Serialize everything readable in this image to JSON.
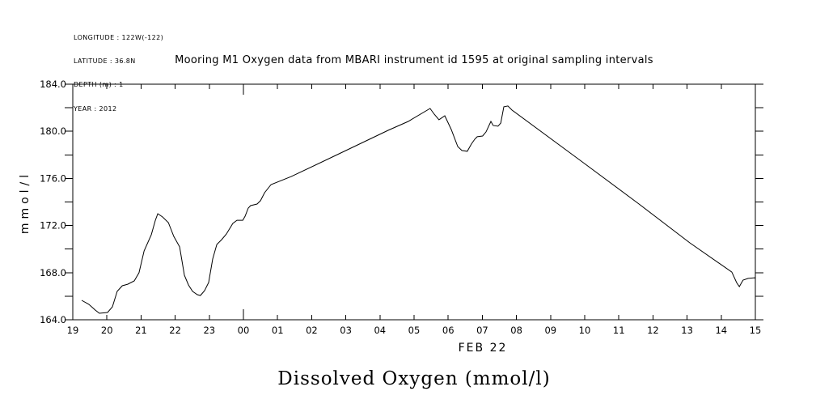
{
  "header": {
    "metadata_lines": [
      "LONGITUDE : 122W(-122)",
      "LATITUDE : 36.8N",
      "DEPTH (m) : 1",
      "YEAR : 2012"
    ]
  },
  "chart_data": {
    "type": "line",
    "title": "Mooring M1 Oxygen data from MBARI instrument id 1595 at original sampling intervals",
    "ylabel": "mmol/l",
    "xlabel": "FEB 22",
    "caption": "Dissolved Oxygen (mmol/l)",
    "grid": false,
    "legend": "none",
    "line_color": "#000000",
    "background_color": "#ffffff",
    "ylim": [
      164.0,
      184.0
    ],
    "y_major_ticks": [
      164.0,
      168.0,
      172.0,
      176.0,
      180.0,
      184.0
    ],
    "y_major_tick_labels": [
      "164.0",
      "168.0",
      "172.0",
      "176.0",
      "180.0",
      "184.0"
    ],
    "y_minor_ticks": [
      166.0,
      170.0,
      174.0,
      178.0,
      182.0
    ],
    "x_range_hours": [
      0,
      20
    ],
    "x_tick_labels": [
      "19",
      "20",
      "21",
      "22",
      "23",
      "00",
      "01",
      "02",
      "03",
      "04",
      "05",
      "06",
      "07",
      "08",
      "09",
      "10",
      "11",
      "12",
      "13",
      "14",
      "15"
    ],
    "x_midnight_label": "00",
    "series": [
      {
        "name": "dissolved_oxygen_mmol_per_l",
        "x_unit": "hours_since_feb21_1900",
        "points": [
          [
            0.26,
            165.65
          ],
          [
            0.47,
            165.31
          ],
          [
            0.66,
            164.82
          ],
          [
            0.78,
            164.55
          ],
          [
            1.02,
            164.62
          ],
          [
            1.16,
            165.1
          ],
          [
            1.3,
            166.41
          ],
          [
            1.45,
            166.89
          ],
          [
            1.61,
            167.02
          ],
          [
            1.8,
            167.3
          ],
          [
            1.94,
            167.99
          ],
          [
            2.09,
            169.85
          ],
          [
            2.3,
            171.22
          ],
          [
            2.42,
            172.45
          ],
          [
            2.49,
            173.0
          ],
          [
            2.63,
            172.73
          ],
          [
            2.8,
            172.25
          ],
          [
            2.96,
            171.08
          ],
          [
            3.13,
            170.19
          ],
          [
            3.27,
            167.78
          ],
          [
            3.39,
            166.95
          ],
          [
            3.51,
            166.41
          ],
          [
            3.65,
            166.13
          ],
          [
            3.74,
            166.06
          ],
          [
            3.86,
            166.47
          ],
          [
            3.98,
            167.16
          ],
          [
            4.1,
            169.16
          ],
          [
            4.22,
            170.39
          ],
          [
            4.36,
            170.8
          ],
          [
            4.5,
            171.28
          ],
          [
            4.69,
            172.18
          ],
          [
            4.81,
            172.45
          ],
          [
            4.98,
            172.45
          ],
          [
            5.05,
            172.8
          ],
          [
            5.14,
            173.48
          ],
          [
            5.21,
            173.69
          ],
          [
            5.4,
            173.83
          ],
          [
            5.5,
            174.11
          ],
          [
            5.62,
            174.79
          ],
          [
            5.81,
            175.48
          ],
          [
            6.4,
            176.16
          ],
          [
            7.75,
            178.02
          ],
          [
            9.24,
            180.08
          ],
          [
            9.83,
            180.84
          ],
          [
            10.47,
            181.94
          ],
          [
            10.59,
            181.46
          ],
          [
            10.73,
            180.98
          ],
          [
            10.9,
            181.32
          ],
          [
            11.09,
            180.15
          ],
          [
            11.28,
            178.71
          ],
          [
            11.4,
            178.37
          ],
          [
            11.56,
            178.3
          ],
          [
            11.68,
            178.92
          ],
          [
            11.78,
            179.33
          ],
          [
            11.85,
            179.54
          ],
          [
            12.01,
            179.6
          ],
          [
            12.11,
            179.95
          ],
          [
            12.25,
            180.84
          ],
          [
            12.32,
            180.49
          ],
          [
            12.46,
            180.43
          ],
          [
            12.54,
            180.7
          ],
          [
            12.63,
            182.08
          ],
          [
            12.75,
            182.15
          ],
          [
            12.87,
            181.8
          ],
          [
            14.93,
            177.4
          ],
          [
            16.59,
            173.83
          ],
          [
            18.08,
            170.53
          ],
          [
            19.31,
            168.05
          ],
          [
            19.45,
            167.16
          ],
          [
            19.53,
            166.82
          ],
          [
            19.64,
            167.37
          ],
          [
            19.79,
            167.51
          ],
          [
            19.98,
            167.57
          ],
          [
            20.0,
            167.51
          ]
        ]
      }
    ]
  }
}
